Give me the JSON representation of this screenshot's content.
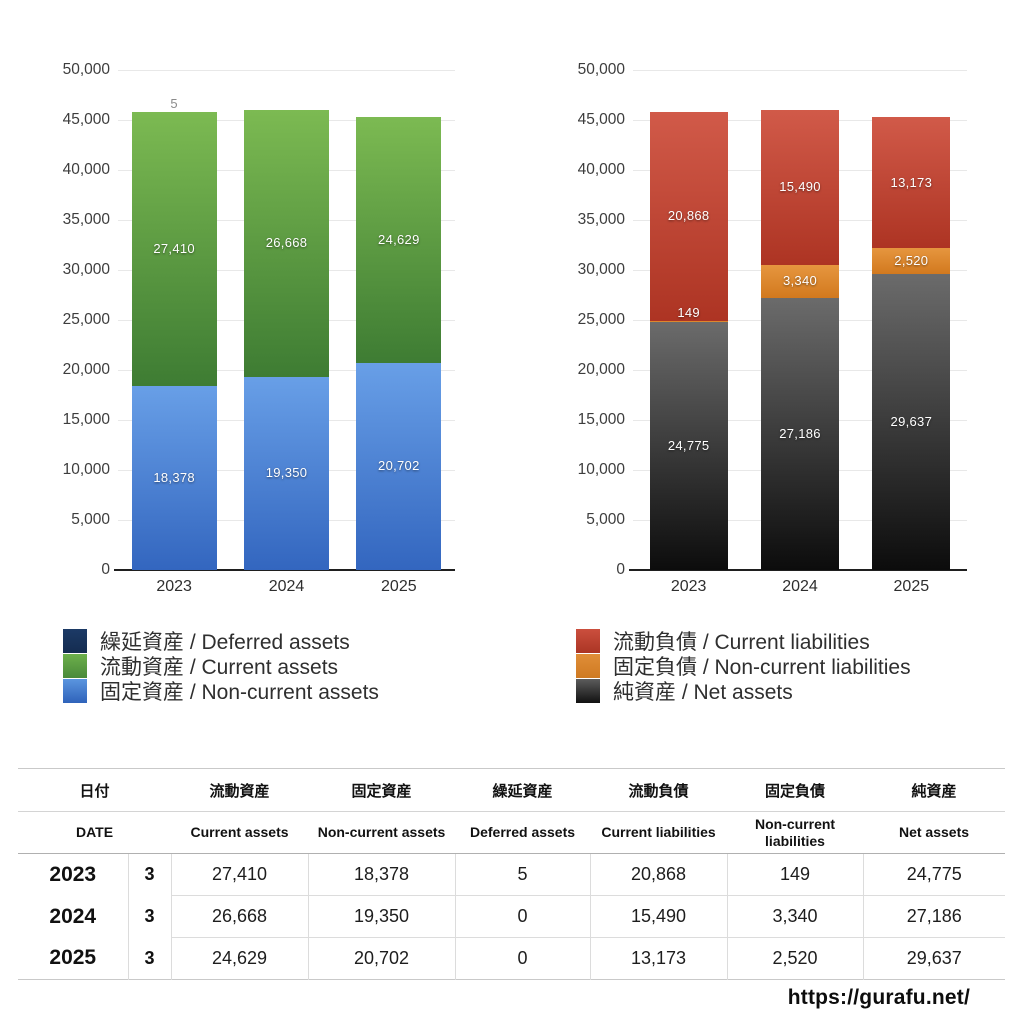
{
  "chart_data": [
    {
      "type": "bar",
      "stacked": true,
      "title": "",
      "xlabel": "",
      "ylabel": "",
      "categories": [
        "2023",
        "2024",
        "2025"
      ],
      "ylim": [
        0,
        50000
      ],
      "ytick_step": 5000,
      "grid": true,
      "series": [
        {
          "name": "固定資産 / Non-current assets",
          "values": [
            18378,
            19350,
            20702
          ],
          "color_top": "#689fe7",
          "color_bottom": "#3366bf"
        },
        {
          "name": "流動資産 / Current assets",
          "values": [
            27410,
            26668,
            24629
          ],
          "color_top": "#7cba52",
          "color_bottom": "#3e7c33"
        },
        {
          "name": "繰延資産 / Deferred assets",
          "values": [
            5,
            0,
            0
          ],
          "color_top": "#1c3a66",
          "color_bottom": "#142c50"
        }
      ],
      "legend": {
        "position": "bottom-left",
        "items": [
          {
            "label": "繰延資産 / Deferred assets",
            "color_top": "#1c3a66",
            "color_bottom": "#142c50"
          },
          {
            "label": "流動資産 / Current assets",
            "color_top": "#6db04b",
            "color_bottom": "#4a8a3a"
          },
          {
            "label": "固定資産 / Non-current assets",
            "color_top": "#5b95df",
            "color_bottom": "#2f63ba"
          }
        ]
      }
    },
    {
      "type": "bar",
      "stacked": true,
      "title": "",
      "xlabel": "",
      "ylabel": "",
      "categories": [
        "2023",
        "2024",
        "2025"
      ],
      "ylim": [
        0,
        50000
      ],
      "ytick_step": 5000,
      "grid": true,
      "series": [
        {
          "name": "純資産 / Net assets",
          "values": [
            24775,
            27186,
            29637
          ],
          "color_top": "#6b6b6b",
          "color_bottom": "#0c0c0c"
        },
        {
          "name": "固定負債 / Non-current liabilities",
          "values": [
            149,
            3340,
            2520
          ],
          "color_top": "#e6963f",
          "color_bottom": "#d2791e"
        },
        {
          "name": "流動負債 / Current liabilities",
          "values": [
            20868,
            15490,
            13173
          ],
          "color_top": "#d15a49",
          "color_bottom": "#ad3423"
        }
      ],
      "legend": {
        "position": "bottom-left",
        "items": [
          {
            "label": "流動負債 / Current liabilities",
            "color_top": "#cb4f3e",
            "color_bottom": "#ab3524"
          },
          {
            "label": "固定負債 / Non-current liabilities",
            "color_top": "#e08e38",
            "color_bottom": "#cf7a22"
          },
          {
            "label": "純資産 / Net assets",
            "color_top": "#5c5c5c",
            "color_bottom": "#111111"
          }
        ]
      }
    }
  ],
  "table": {
    "columns_jp": [
      "日付",
      "流動資産",
      "固定資産",
      "繰延資産",
      "流動負債",
      "固定負債",
      "純資産"
    ],
    "columns_en": [
      "DATE",
      "Current assets",
      "Non-current assets",
      "Deferred assets",
      "Current liabilities",
      "Non-current liabilities",
      "Net assets"
    ],
    "rows": [
      {
        "year": "2023",
        "month": "3",
        "values": [
          "27,410",
          "18,378",
          "5",
          "20,868",
          "149",
          "24,775"
        ]
      },
      {
        "year": "2024",
        "month": "3",
        "values": [
          "26,668",
          "19,350",
          "0",
          "15,490",
          "3,340",
          "27,186"
        ]
      },
      {
        "year": "2025",
        "month": "3",
        "values": [
          "24,629",
          "20,702",
          "0",
          "13,173",
          "2,520",
          "29,637"
        ]
      }
    ]
  },
  "footer": {
    "url": "https://gurafu.net/"
  }
}
